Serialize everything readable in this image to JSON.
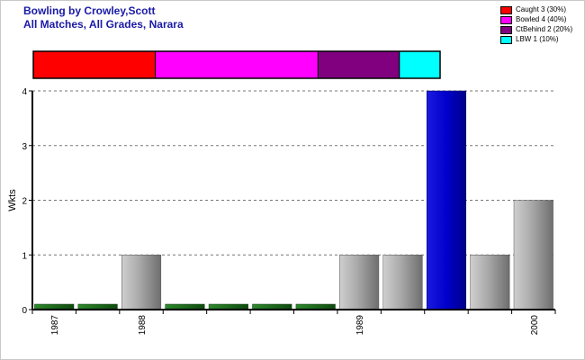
{
  "header": {
    "title": "Bowling by Crowley,Scott",
    "subtitle": "All Matches, All Grades, Narara"
  },
  "chart_data": {
    "type": "bar",
    "ylabel": "Wkts",
    "xlabel": "",
    "ylim": [
      0,
      4
    ],
    "yticks": [
      0,
      1,
      2,
      3,
      4
    ],
    "grid": "horizontal dashed",
    "legend_position": "top-right",
    "x_labels": [
      "1987",
      "1988",
      "1989",
      "2000"
    ],
    "x_label_slots": [
      0,
      2,
      7,
      11
    ],
    "values": [
      0,
      0,
      1,
      0,
      0,
      0,
      0,
      1,
      1,
      4,
      1,
      2
    ],
    "highlight_index": 9,
    "dismissals": [
      {
        "name": "Caught",
        "count": 3,
        "pct": 30,
        "label": "Caught 3 (30%)",
        "color": "#ff0000"
      },
      {
        "name": "Bowled",
        "count": 4,
        "pct": 40,
        "label": "Bowled 4 (40%)",
        "color": "#ff00ff"
      },
      {
        "name": "CtBehind",
        "count": 2,
        "pct": 20,
        "label": "CtBehind 2 (20%)",
        "color": "#800080"
      },
      {
        "name": "LBW",
        "count": 1,
        "pct": 10,
        "label": "LBW 1 (10%)",
        "color": "#00ffff"
      }
    ],
    "colors": {
      "normal_bar": "#a8a8a8",
      "highlight_bar": "#0000cc",
      "zero_bar": "#1a6b1a"
    }
  }
}
